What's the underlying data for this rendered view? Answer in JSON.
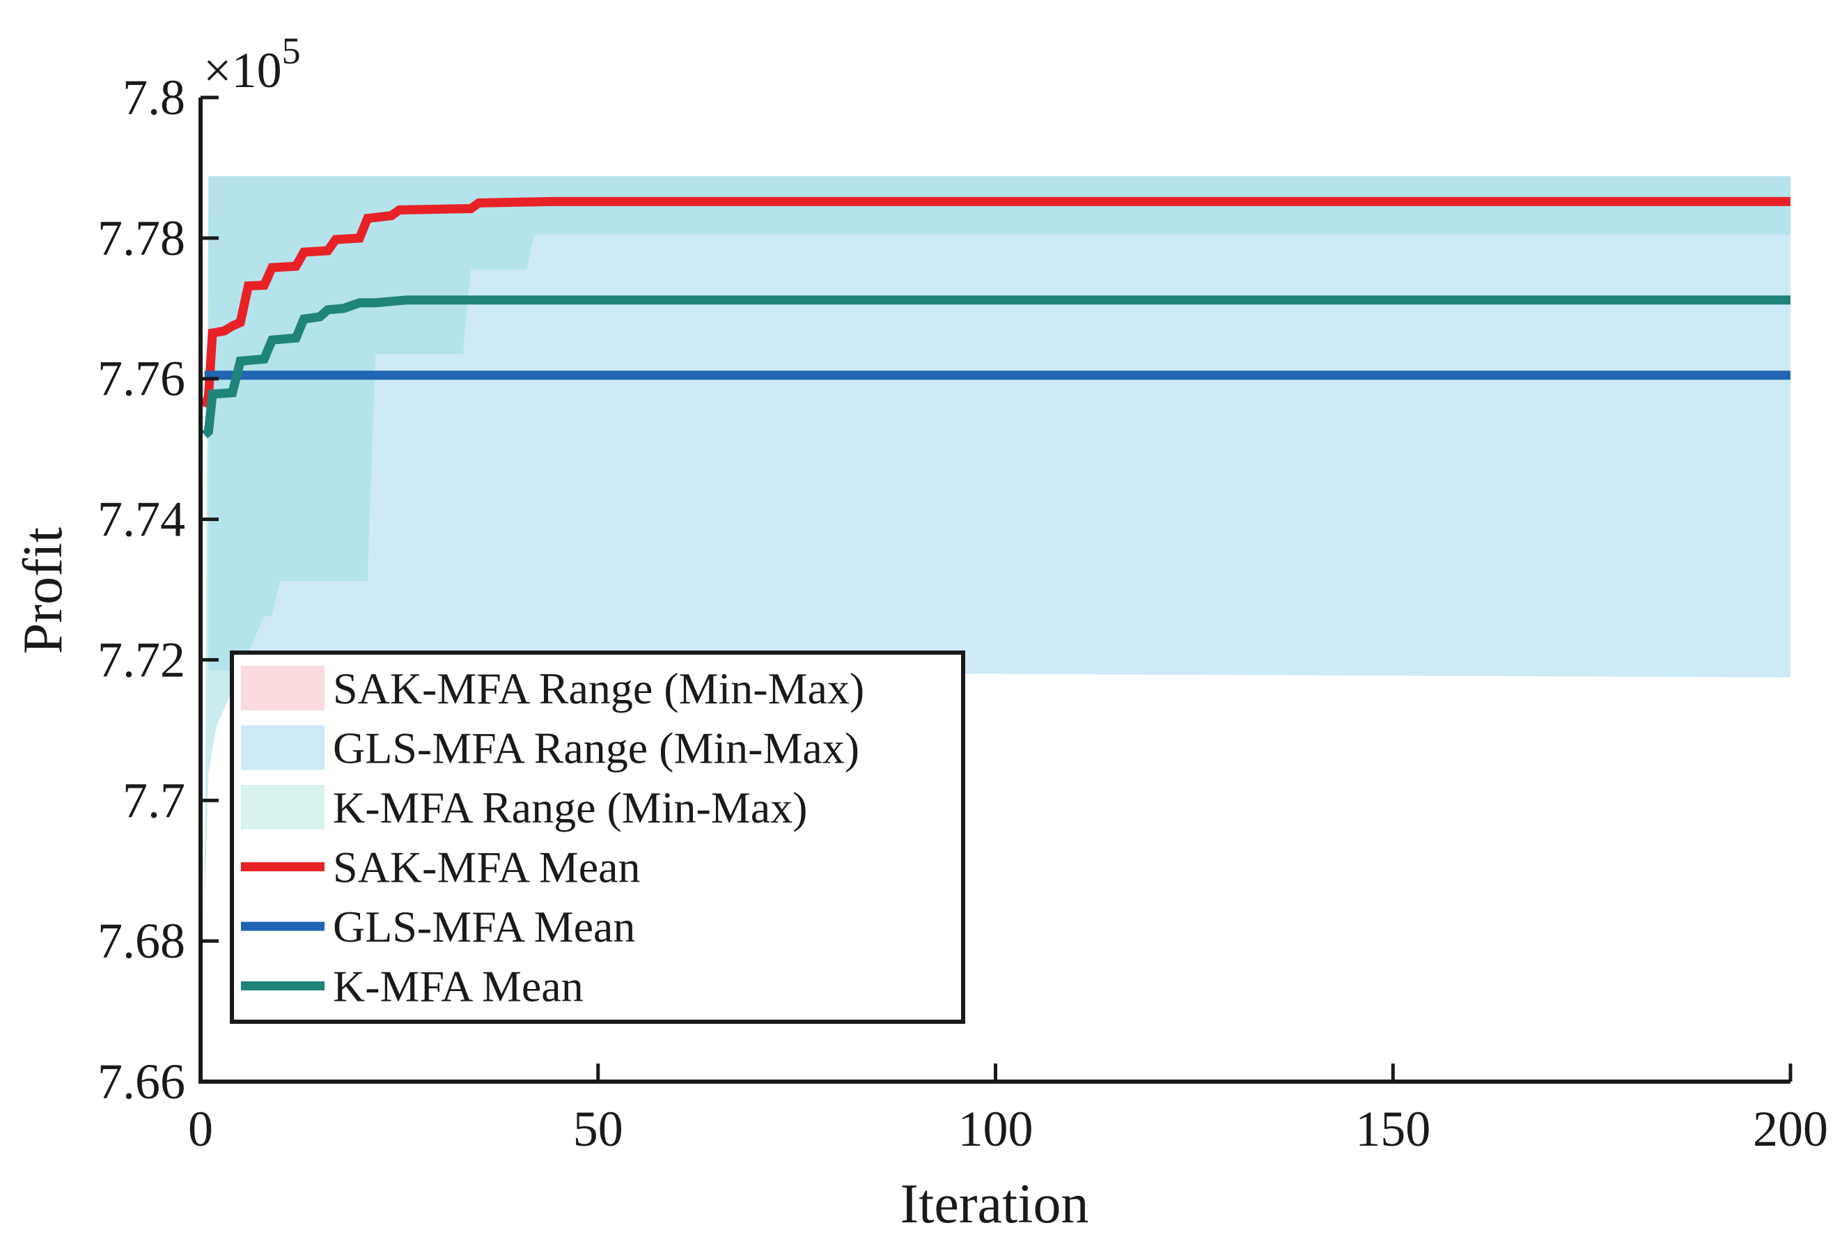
{
  "chart_data": {
    "type": "line",
    "xlabel": "Iteration",
    "ylabel": "Profit",
    "y_exponent_label": "×10",
    "y_exponent_power": "5",
    "xlim": [
      0,
      200
    ],
    "ylim": [
      7.66,
      7.8
    ],
    "x_ticks": [
      0,
      50,
      100,
      150,
      200
    ],
    "x_tick_labels": [
      "0",
      "50",
      "100",
      "150",
      "200"
    ],
    "y_ticks": [
      7.66,
      7.68,
      7.7,
      7.72,
      7.74,
      7.76,
      7.78,
      7.8
    ],
    "y_tick_labels": [
      "7.66",
      "7.68",
      "7.7",
      "7.72",
      "7.74",
      "7.76",
      "7.78",
      "7.8"
    ],
    "grid": false,
    "legend_position": "bottom-left",
    "ranges": [
      {
        "name": "SAK-MFA Range (Min-Max)",
        "legend_color": "#fadadd",
        "fill_color": "#e9c2cc",
        "opacity": 0.6,
        "upper": [
          [
            1,
            7.7888
          ],
          [
            200,
            7.7888
          ]
        ],
        "lower": [
          [
            1,
            7.7535
          ],
          [
            2,
            7.7312
          ],
          [
            21,
            7.7312
          ],
          [
            22,
            7.7635
          ],
          [
            33,
            7.7635
          ],
          [
            34,
            7.7755
          ],
          [
            41,
            7.7755
          ],
          [
            42,
            7.7805
          ],
          [
            200,
            7.7805
          ]
        ]
      },
      {
        "name": "GLS-MFA Range (Min-Max)",
        "legend_color": "#cfeaf7",
        "fill_color": "#cfeaf7",
        "opacity": 1,
        "upper": [
          [
            1,
            7.7888
          ],
          [
            200,
            7.7888
          ]
        ],
        "lower": [
          [
            1,
            7.7185
          ],
          [
            200,
            7.7175
          ]
        ]
      },
      {
        "name": "K-MFA Range (Min-Max)",
        "legend_color": "#d9f3ef",
        "fill_color": "#9fdde1",
        "opacity": 0.55,
        "upper": [
          [
            1,
            7.7888
          ],
          [
            200,
            7.7888
          ]
        ],
        "lower": [
          [
            0.5,
            7.685
          ],
          [
            1,
            7.704
          ],
          [
            2,
            7.7105
          ],
          [
            8,
            7.7262
          ],
          [
            9,
            7.7262
          ],
          [
            10,
            7.7312
          ],
          [
            16,
            7.7312
          ],
          [
            21,
            7.7312
          ],
          [
            22,
            7.7635
          ],
          [
            33,
            7.7635
          ],
          [
            34,
            7.7755
          ],
          [
            41,
            7.7755
          ],
          [
            42,
            7.7805
          ],
          [
            200,
            7.7805
          ]
        ]
      }
    ],
    "series": [
      {
        "name": "SAK-MFA Mean",
        "color": "#e82127",
        "points": [
          [
            0.5,
            7.756
          ],
          [
            1,
            7.7575
          ],
          [
            1.5,
            7.7665
          ],
          [
            3,
            7.7668
          ],
          [
            4,
            7.7675
          ],
          [
            5,
            7.768
          ],
          [
            6,
            7.7732
          ],
          [
            8,
            7.7733
          ],
          [
            9,
            7.7758
          ],
          [
            12,
            7.776
          ],
          [
            13,
            7.778
          ],
          [
            16,
            7.7782
          ],
          [
            17,
            7.7798
          ],
          [
            20,
            7.78
          ],
          [
            21,
            7.7828
          ],
          [
            24,
            7.7832
          ],
          [
            25,
            7.784
          ],
          [
            34,
            7.7842
          ],
          [
            35,
            7.785
          ],
          [
            44,
            7.7852
          ],
          [
            200,
            7.7852
          ]
        ]
      },
      {
        "name": "GLS-MFA Mean",
        "color": "#1f65b3",
        "points": [
          [
            0.5,
            7.7605
          ],
          [
            200,
            7.7605
          ]
        ]
      },
      {
        "name": "K-MFA Mean",
        "color": "#1f847a",
        "points": [
          [
            0.5,
            7.752
          ],
          [
            1,
            7.7525
          ],
          [
            1.5,
            7.7578
          ],
          [
            4,
            7.758
          ],
          [
            5,
            7.7625
          ],
          [
            8,
            7.7628
          ],
          [
            9,
            7.7655
          ],
          [
            12,
            7.7658
          ],
          [
            13,
            7.7685
          ],
          [
            15,
            7.7688
          ],
          [
            16,
            7.7698
          ],
          [
            18,
            7.77
          ],
          [
            20,
            7.7708
          ],
          [
            22,
            7.7708
          ],
          [
            26,
            7.7712
          ],
          [
            200,
            7.7712
          ]
        ]
      }
    ]
  }
}
